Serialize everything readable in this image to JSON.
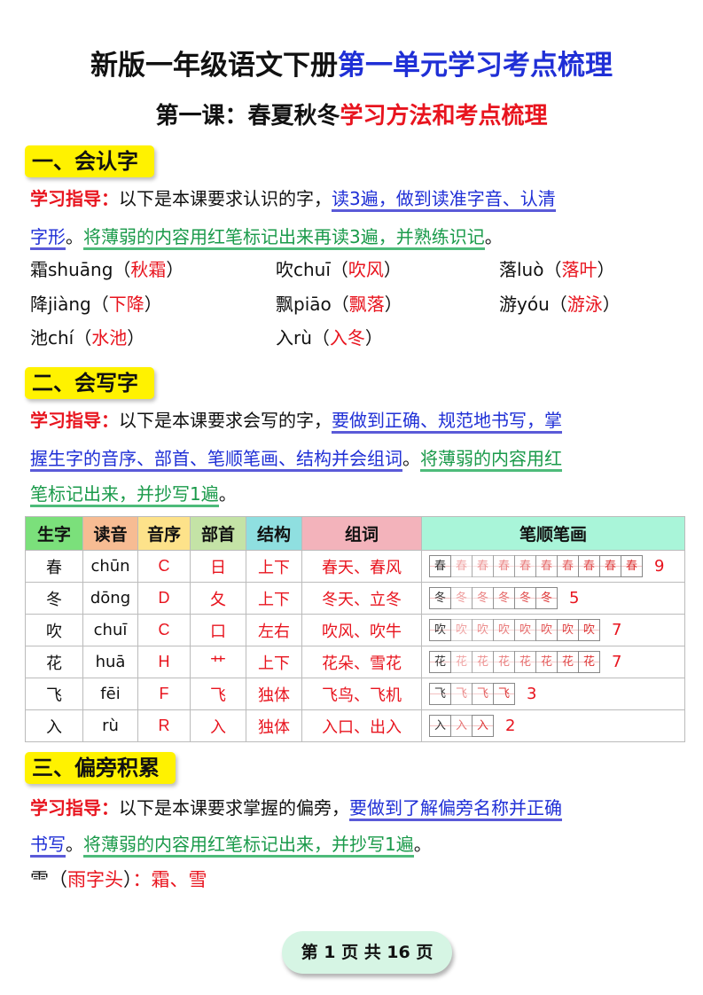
{
  "title": {
    "part1": "新版一年级语文下册",
    "part2": "第一单元学习考点梳理"
  },
  "subtitle": {
    "part1": "第一课：春夏秋冬",
    "part2": "学习方法和考点梳理"
  },
  "section1": {
    "header": "一、会认字",
    "label": "学习指导：",
    "text1": "以下是本课要求认识的字，",
    "blue1": "读3遍，做到读准字音、认清",
    "blue2": "字形",
    "sep": "。",
    "green": "将薄弱的内容用红笔标记出来再读3遍，并熟练识记",
    "end": "。",
    "words": [
      {
        "char": "霜",
        "pinyin": "shuāng",
        "word": "秋霜"
      },
      {
        "char": "吹",
        "pinyin": "chuī",
        "word": "吹风"
      },
      {
        "char": "落",
        "pinyin": "luò",
        "word": "落叶"
      },
      {
        "char": "降",
        "pinyin": "jiàng",
        "word": "下降"
      },
      {
        "char": "飘",
        "pinyin": "piāo",
        "word": "飘落"
      },
      {
        "char": "游",
        "pinyin": "yóu",
        "word": "游泳"
      },
      {
        "char": "池",
        "pinyin": "chí",
        "word": "水池"
      },
      {
        "char": "入",
        "pinyin": "rù",
        "word": "入冬"
      }
    ]
  },
  "section2": {
    "header": "二、会写字",
    "label": "学习指导：",
    "text1": "以下是本课要求会写的字，",
    "blue1": "要做到正确、规范地书写，掌",
    "blue2": "握生字的音序、部首、笔顺笔画、结构并会组词",
    "sep": "。",
    "green1": "将薄弱的内容用红",
    "green2": "笔标记出来，并抄写1遍",
    "end": "。",
    "columns": [
      {
        "label": "生字",
        "color": "#7be07b"
      },
      {
        "label": "读音",
        "color": "#f7bc93"
      },
      {
        "label": "音序",
        "color": "#fde28a"
      },
      {
        "label": "部首",
        "color": "#c4e3a6"
      },
      {
        "label": "结构",
        "color": "#8fdfe0"
      },
      {
        "label": "组词",
        "color": "#f3b3bb"
      },
      {
        "label": "笔顺笔画",
        "color": "#a9f5d9"
      }
    ],
    "rows": [
      {
        "char": "春",
        "pinyin": "chūn",
        "initial": "C",
        "radical": "日",
        "structure": "上下",
        "words": "春天、春风",
        "strokes": 9
      },
      {
        "char": "冬",
        "pinyin": "dōng",
        "initial": "D",
        "radical": "夂",
        "structure": "上下",
        "words": "冬天、立冬",
        "strokes": 5
      },
      {
        "char": "吹",
        "pinyin": "chuī",
        "initial": "C",
        "radical": "口",
        "structure": "左右",
        "words": "吹风、吹牛",
        "strokes": 7
      },
      {
        "char": "花",
        "pinyin": "huā",
        "initial": "H",
        "radical": "艹",
        "structure": "上下",
        "words": "花朵、雪花",
        "strokes": 7
      },
      {
        "char": "飞",
        "pinyin": "fēi",
        "initial": "F",
        "radical": "飞",
        "structure": "独体",
        "words": "飞鸟、飞机",
        "strokes": 3
      },
      {
        "char": "入",
        "pinyin": "rù",
        "initial": "R",
        "radical": "入",
        "structure": "独体",
        "words": "入口、出入",
        "strokes": 2
      }
    ]
  },
  "section3": {
    "header": "三、偏旁积累",
    "label": "学习指导：",
    "text1": "以下是本课要求掌握的偏旁，",
    "blue1": "要做到了解偏旁名称并正确",
    "blue2": "书写",
    "sep": "。",
    "green": "将薄弱的内容用红笔标记出来，并抄写1遍",
    "end": "。",
    "radical": "⻗",
    "radical_name": "雨字头",
    "examples": "：霜、雪"
  },
  "footer": "第 1 页 共 16 页"
}
